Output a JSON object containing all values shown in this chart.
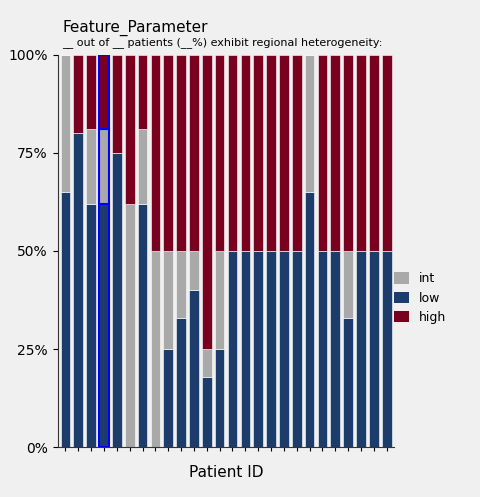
{
  "title": "Feature_Parameter",
  "subtitle": "__ out of __ patients (__%) exhibit regional heterogeneity:",
  "xlabel": "Patient ID",
  "ylabel": "",
  "colors": {
    "int": "#a9a9a9",
    "low": "#1c3d6b",
    "high": "#7a0020"
  },
  "n_bars": 26,
  "low": [
    0.65,
    0.8,
    0.62,
    0.62,
    0.75,
    0.0,
    0.62,
    0.0,
    0.25,
    0.33,
    0.4,
    0.18,
    0.25,
    0.5,
    0.5,
    0.5,
    0.5,
    0.5,
    0.5,
    0.65,
    0.5,
    0.5,
    0.33,
    0.5,
    0.5,
    0.5
  ],
  "int": [
    0.35,
    0.0,
    0.19,
    0.19,
    0.0,
    0.62,
    0.19,
    0.5,
    0.25,
    0.17,
    0.1,
    0.07,
    0.25,
    0.0,
    0.0,
    0.0,
    0.0,
    0.0,
    0.0,
    0.35,
    0.0,
    0.0,
    0.17,
    0.0,
    0.0,
    0.0
  ],
  "high": [
    0.0,
    0.2,
    0.19,
    0.19,
    0.25,
    0.38,
    0.19,
    0.5,
    0.5,
    0.5,
    0.5,
    0.75,
    0.5,
    0.5,
    0.5,
    0.5,
    0.5,
    0.5,
    0.5,
    0.0,
    0.5,
    0.5,
    0.5,
    0.5,
    0.5,
    0.5
  ],
  "highlight_bar_idx": 3,
  "background_color": "#f0f0f0",
  "yticks": [
    0.0,
    0.25,
    0.5,
    0.75,
    1.0
  ],
  "ytick_labels": [
    "0%",
    "25%",
    "50%",
    "75%",
    "100%"
  ],
  "bar_width": 0.75
}
